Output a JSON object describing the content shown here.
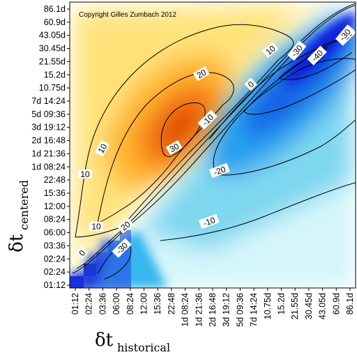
{
  "chart_data": {
    "type": "heatmap",
    "title": "",
    "copyright": "Copyright Gilles Zumbach 2012",
    "xlabel_symbol": "δt",
    "xlabel_subscript": "historical",
    "ylabel_symbol": "δt",
    "ylabel_subscript": "centered",
    "x_ticks": [
      "01:12",
      "02:24",
      "03:36",
      "06:00",
      "08:24",
      "12:00",
      "15:36",
      "22:48",
      "1d 08:24",
      "1d 21:36",
      "2d 16:48",
      "3d 19:12",
      "5d 09:36",
      "7d 14:24",
      "10.75d",
      "15.2d",
      "21.55d",
      "30.45d",
      "43.05d",
      "60.9d",
      "86.1d"
    ],
    "y_ticks": [
      "01:12",
      "02:24",
      "02:24",
      "03:36",
      "06:00",
      "08:24",
      "12:00",
      "15:36",
      "22:48",
      "1d 08:24",
      "1d 21:36",
      "2d 16:48",
      "3d 19:12",
      "5d 09:36",
      "7d 14:24",
      "10.75d",
      "15.2d",
      "21.55d",
      "30.45d",
      "43.05d",
      "60.9d",
      "86.1d"
    ],
    "contour_labels": [
      {
        "value": "0"
      },
      {
        "value": "0"
      },
      {
        "value": "10"
      },
      {
        "value": "10"
      },
      {
        "value": "10"
      },
      {
        "value": "10"
      },
      {
        "value": "20"
      },
      {
        "value": "20"
      },
      {
        "value": "30"
      },
      {
        "value": "-10"
      },
      {
        "value": "-10"
      },
      {
        "value": "-20"
      },
      {
        "value": "-20"
      },
      {
        "value": "-30"
      },
      {
        "value": "-30"
      },
      {
        "value": "-30"
      },
      {
        "value": "-40"
      }
    ],
    "value_peaks": {
      "positive_max": 33,
      "negative_min": -45
    },
    "colors": {
      "positive_low": "#fff9d0",
      "positive_high": "#e04000",
      "negative_low": "#e4fbff",
      "negative_high": "#1010d8"
    }
  }
}
